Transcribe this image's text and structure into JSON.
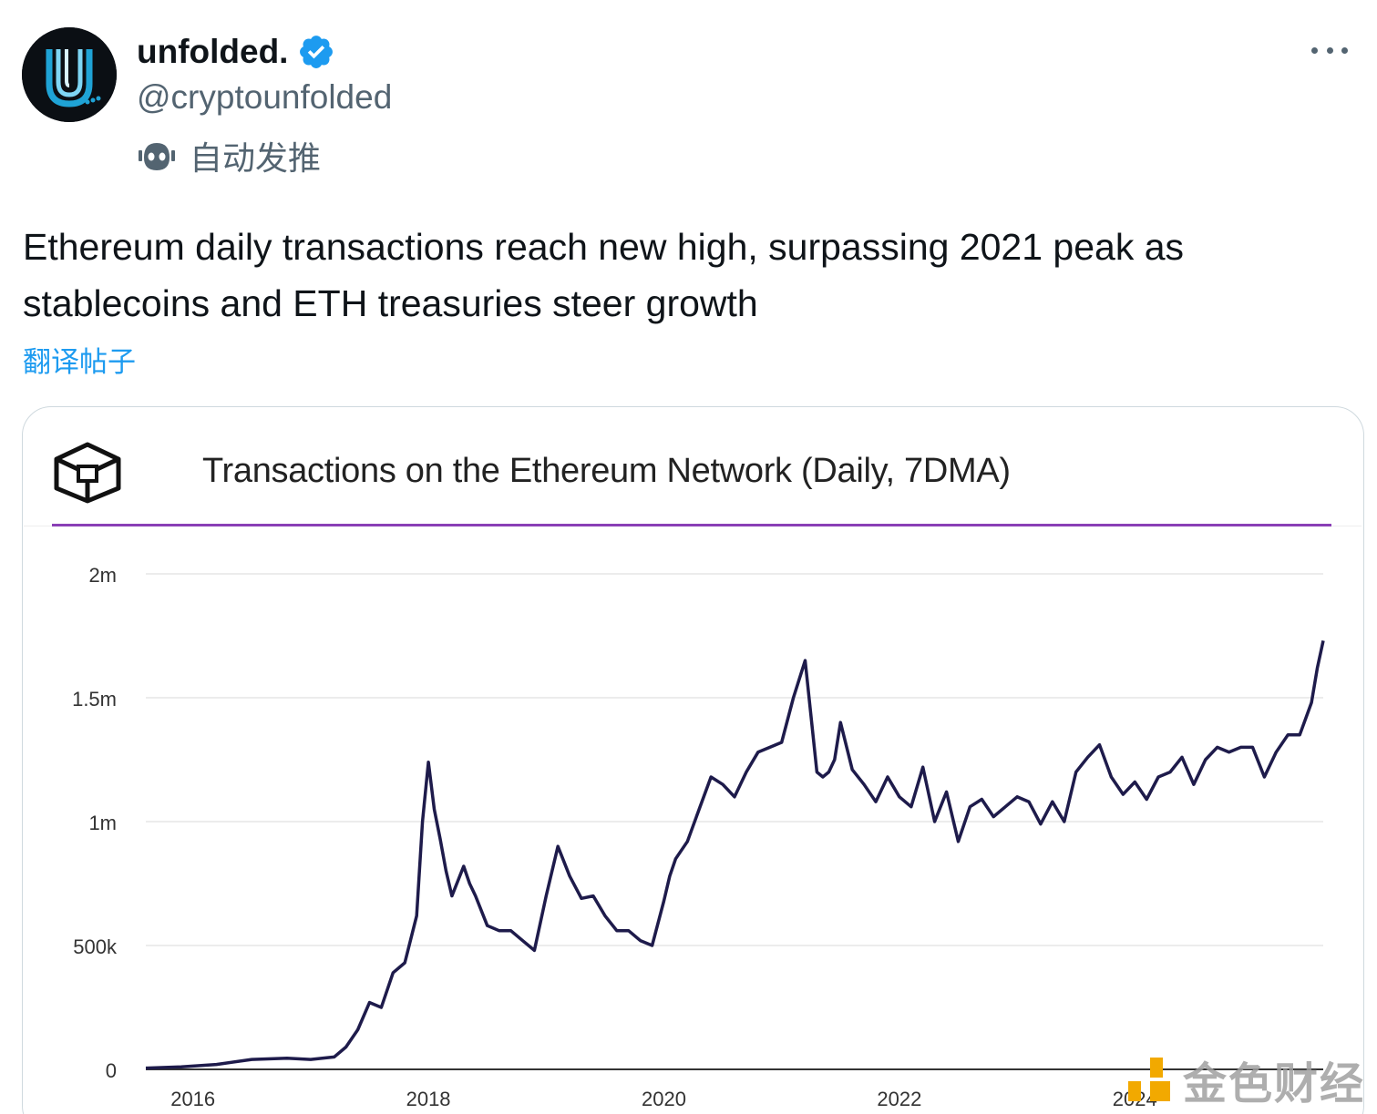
{
  "author": {
    "name": "unfolded.",
    "handle": "@cryptounfolded",
    "label": "自动发推",
    "verified": true,
    "avatar_icon": "unfolded-logo-icon"
  },
  "tweet": {
    "text": "Ethereum daily transactions reach new high, surpassing 2021 peak as stablecoins and ETH treasuries steer growth",
    "translate_label": "翻译帖子"
  },
  "colors": {
    "accent_blue": "#1d9bf0",
    "verified_blue": "#1d9bf0",
    "line_color": "#1e1b4b",
    "title_rule": "#8a3fb6"
  },
  "watermark": {
    "text": "金色财经"
  },
  "chart_data": {
    "type": "line",
    "title": "Transactions on the Ethereum Network (Daily, 7DMA)",
    "xlabel": "",
    "ylabel": "",
    "y_ticks": [
      "0",
      "500k",
      "1m",
      "1.5m",
      "2m"
    ],
    "y_tick_values": [
      0,
      500000,
      1000000,
      1500000,
      2000000
    ],
    "x_ticks": [
      "2016",
      "2018",
      "2020",
      "2022",
      "2024"
    ],
    "x_tick_values": [
      2016,
      2018,
      2020,
      2022,
      2024
    ],
    "ylim": [
      0,
      2000000
    ],
    "xlim": [
      2015.6,
      2025.6
    ],
    "grid": true,
    "series": [
      {
        "x": [
          2015.6,
          2015.9,
          2016.2,
          2016.5,
          2016.8,
          2017.0,
          2017.2,
          2017.3,
          2017.4,
          2017.5,
          2017.6,
          2017.7,
          2017.8,
          2017.9,
          2017.95,
          2018.0,
          2018.05,
          2018.1,
          2018.15,
          2018.2,
          2018.3,
          2018.35,
          2018.4,
          2018.5,
          2018.6,
          2018.7,
          2018.8,
          2018.9,
          2019.0,
          2019.1,
          2019.2,
          2019.3,
          2019.4,
          2019.5,
          2019.6,
          2019.7,
          2019.8,
          2019.9,
          2020.0,
          2020.05,
          2020.1,
          2020.2,
          2020.3,
          2020.4,
          2020.5,
          2020.6,
          2020.7,
          2020.8,
          2020.9,
          2021.0,
          2021.1,
          2021.2,
          2021.3,
          2021.35,
          2021.4,
          2021.45,
          2021.5,
          2021.6,
          2021.7,
          2021.8,
          2021.9,
          2022.0,
          2022.1,
          2022.2,
          2022.3,
          2022.4,
          2022.5,
          2022.6,
          2022.7,
          2022.8,
          2022.9,
          2023.0,
          2023.1,
          2023.2,
          2023.3,
          2023.4,
          2023.5,
          2023.6,
          2023.7,
          2023.8,
          2023.9,
          2024.0,
          2024.1,
          2024.2,
          2024.3,
          2024.4,
          2024.5,
          2024.6,
          2024.7,
          2024.8,
          2024.9,
          2025.0,
          2025.1,
          2025.2,
          2025.3,
          2025.4,
          2025.5,
          2025.55,
          2025.6
        ],
        "y": [
          5000,
          10000,
          20000,
          40000,
          45000,
          40000,
          50000,
          90000,
          160000,
          270000,
          250000,
          390000,
          430000,
          620000,
          1000000,
          1240000,
          1050000,
          930000,
          800000,
          700000,
          820000,
          750000,
          700000,
          580000,
          560000,
          560000,
          520000,
          480000,
          700000,
          900000,
          780000,
          690000,
          700000,
          620000,
          560000,
          560000,
          520000,
          500000,
          680000,
          780000,
          850000,
          920000,
          1050000,
          1180000,
          1150000,
          1100000,
          1200000,
          1280000,
          1300000,
          1320000,
          1500000,
          1650000,
          1200000,
          1180000,
          1200000,
          1250000,
          1400000,
          1210000,
          1150000,
          1080000,
          1180000,
          1100000,
          1060000,
          1220000,
          1000000,
          1120000,
          920000,
          1060000,
          1090000,
          1020000,
          1060000,
          1100000,
          1080000,
          990000,
          1080000,
          1000000,
          1200000,
          1260000,
          1310000,
          1180000,
          1110000,
          1160000,
          1090000,
          1180000,
          1200000,
          1260000,
          1150000,
          1250000,
          1300000,
          1280000,
          1300000,
          1300000,
          1180000,
          1280000,
          1350000,
          1350000,
          1480000,
          1620000,
          1730000
        ]
      }
    ]
  }
}
